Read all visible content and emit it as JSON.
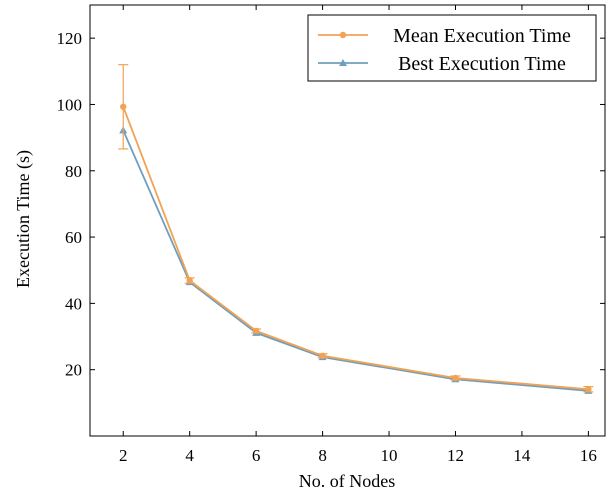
{
  "chart_data": {
    "type": "line",
    "title": "",
    "xlabel": "No. of Nodes",
    "ylabel": "Execution Time (s)",
    "xlim": [
      1,
      16.5
    ],
    "ylim": [
      0,
      130
    ],
    "xticks": [
      2,
      4,
      6,
      8,
      10,
      12,
      14,
      16
    ],
    "yticks": [
      20,
      40,
      60,
      80,
      100,
      120
    ],
    "grid": false,
    "legend_position": "top-right",
    "series": [
      {
        "name": "Mean Execution Time",
        "color": "#f0a354",
        "marker": "circle",
        "x": [
          2,
          4,
          6,
          8,
          12,
          16
        ],
        "y": [
          99.3,
          46.9,
          31.7,
          24.2,
          17.5,
          14.1
        ],
        "error": [
          12.7,
          0.8,
          0.6,
          0.6,
          0.6,
          0.8
        ]
      },
      {
        "name": "Best Execution Time",
        "color": "#6f9ebf",
        "marker": "triangle",
        "x": [
          2,
          4,
          6,
          8,
          12,
          16
        ],
        "y": [
          92.2,
          46.4,
          31.1,
          23.8,
          17.1,
          13.6
        ]
      }
    ]
  }
}
